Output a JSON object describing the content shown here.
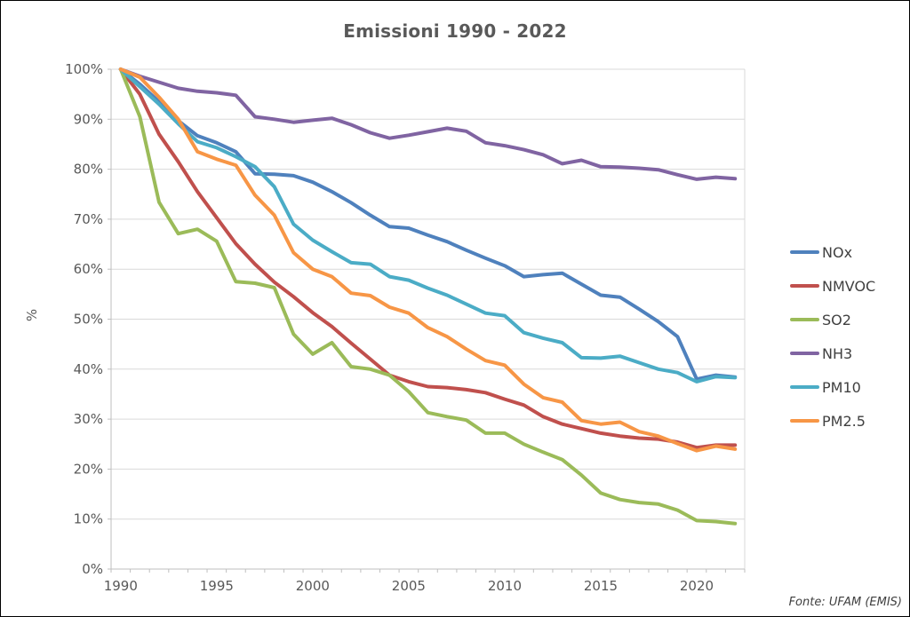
{
  "title": "Emissioni 1990 - 2022",
  "source_note": "Fonte: UFAM (EMIS)",
  "y_axis_title": "%",
  "palette": {
    "title_text": "#595959",
    "axis_text": "#595959",
    "legend_text": "#404040",
    "gridline": "#D9D9D9",
    "axis_line": "#BFBFBF",
    "frame_border": "#000000"
  },
  "chart_data": {
    "type": "line",
    "title": "Emissioni 1990 - 2022",
    "xlabel": "",
    "ylabel": "%",
    "ylim": [
      0,
      100
    ],
    "grid": true,
    "legend_position": "right",
    "x_tick_labels": [
      "1990",
      "1995",
      "2000",
      "2005",
      "2010",
      "2015",
      "2020"
    ],
    "y_tick_labels": [
      "0%",
      "10%",
      "20%",
      "30%",
      "40%",
      "50%",
      "60%",
      "70%",
      "80%",
      "90%",
      "100%"
    ],
    "x": [
      1990,
      1991,
      1992,
      1993,
      1994,
      1995,
      1996,
      1997,
      1998,
      1999,
      2000,
      2001,
      2002,
      2003,
      2004,
      2005,
      2006,
      2007,
      2008,
      2009,
      2010,
      2011,
      2012,
      2013,
      2014,
      2015,
      2016,
      2017,
      2018,
      2019,
      2020,
      2021,
      2022
    ],
    "series": [
      {
        "name": "NOx",
        "color": "#4F81BD",
        "values": [
          100,
          97,
          93.5,
          89.7,
          86.7,
          85.3,
          83.5,
          79.1,
          79,
          78.7,
          77.4,
          75.5,
          73.3,
          70.8,
          68.5,
          68.2,
          66.8,
          65.5,
          63.8,
          62.2,
          60.7,
          58.5,
          58.9,
          59.2,
          57,
          54.8,
          54.4,
          52,
          49.5,
          46.5,
          38,
          38.8,
          38.4
        ]
      },
      {
        "name": "NMVOC",
        "color": "#C0504D",
        "values": [
          100,
          95,
          87,
          81.5,
          75.5,
          70.3,
          65.1,
          61,
          57.4,
          54.5,
          51.3,
          48.5,
          45.2,
          42,
          38.8,
          37.5,
          36.5,
          36.3,
          35.9,
          35.3,
          34,
          32.8,
          30.5,
          29,
          28.1,
          27.2,
          26.6,
          26.2,
          26,
          25.4,
          24.3,
          24.8,
          24.8
        ]
      },
      {
        "name": "SO2",
        "color": "#9BBB59",
        "values": [
          100,
          90.5,
          73.4,
          67.1,
          68,
          65.6,
          57.5,
          57.2,
          56.3,
          47,
          43,
          45.3,
          40.5,
          40,
          38.8,
          35.5,
          31.3,
          30.5,
          29.8,
          27.2,
          27.2,
          25,
          23.4,
          21.9,
          18.8,
          15.2,
          13.9,
          13.3,
          13,
          11.8,
          9.7,
          9.5,
          9.1
        ]
      },
      {
        "name": "NH3",
        "color": "#8064A2",
        "values": [
          100,
          98.6,
          97.4,
          96.2,
          95.6,
          95.3,
          94.8,
          90.5,
          90,
          89.4,
          89.8,
          90.2,
          88.9,
          87.3,
          86.2,
          86.8,
          87.5,
          88.2,
          87.6,
          85.3,
          84.7,
          83.9,
          82.9,
          81.1,
          81.8,
          80.5,
          80.4,
          80.2,
          79.9,
          78.9,
          78,
          78.4,
          78.1
        ]
      },
      {
        "name": "PM10",
        "color": "#4BACC6",
        "values": [
          100,
          96.5,
          93,
          89.1,
          85.5,
          84.3,
          82.5,
          80.5,
          76.5,
          69,
          65.8,
          63.5,
          61.3,
          61,
          58.5,
          57.8,
          56.2,
          54.8,
          53,
          51.2,
          50.7,
          47.3,
          46.2,
          45.3,
          42.3,
          42.2,
          42.6,
          41.3,
          40,
          39.3,
          37.5,
          38.5,
          38.3
        ]
      },
      {
        "name": "PM2.5",
        "color": "#F79646",
        "values": [
          100,
          98.4,
          94.4,
          90,
          83.5,
          82,
          80.8,
          74.8,
          70.8,
          63.3,
          60,
          58.5,
          55.2,
          54.7,
          52.4,
          51.2,
          48.3,
          46.5,
          44,
          41.7,
          40.8,
          37,
          34.3,
          33.4,
          29.7,
          29,
          29.4,
          27.5,
          26.6,
          25.1,
          23.7,
          24.6,
          24
        ]
      }
    ]
  }
}
